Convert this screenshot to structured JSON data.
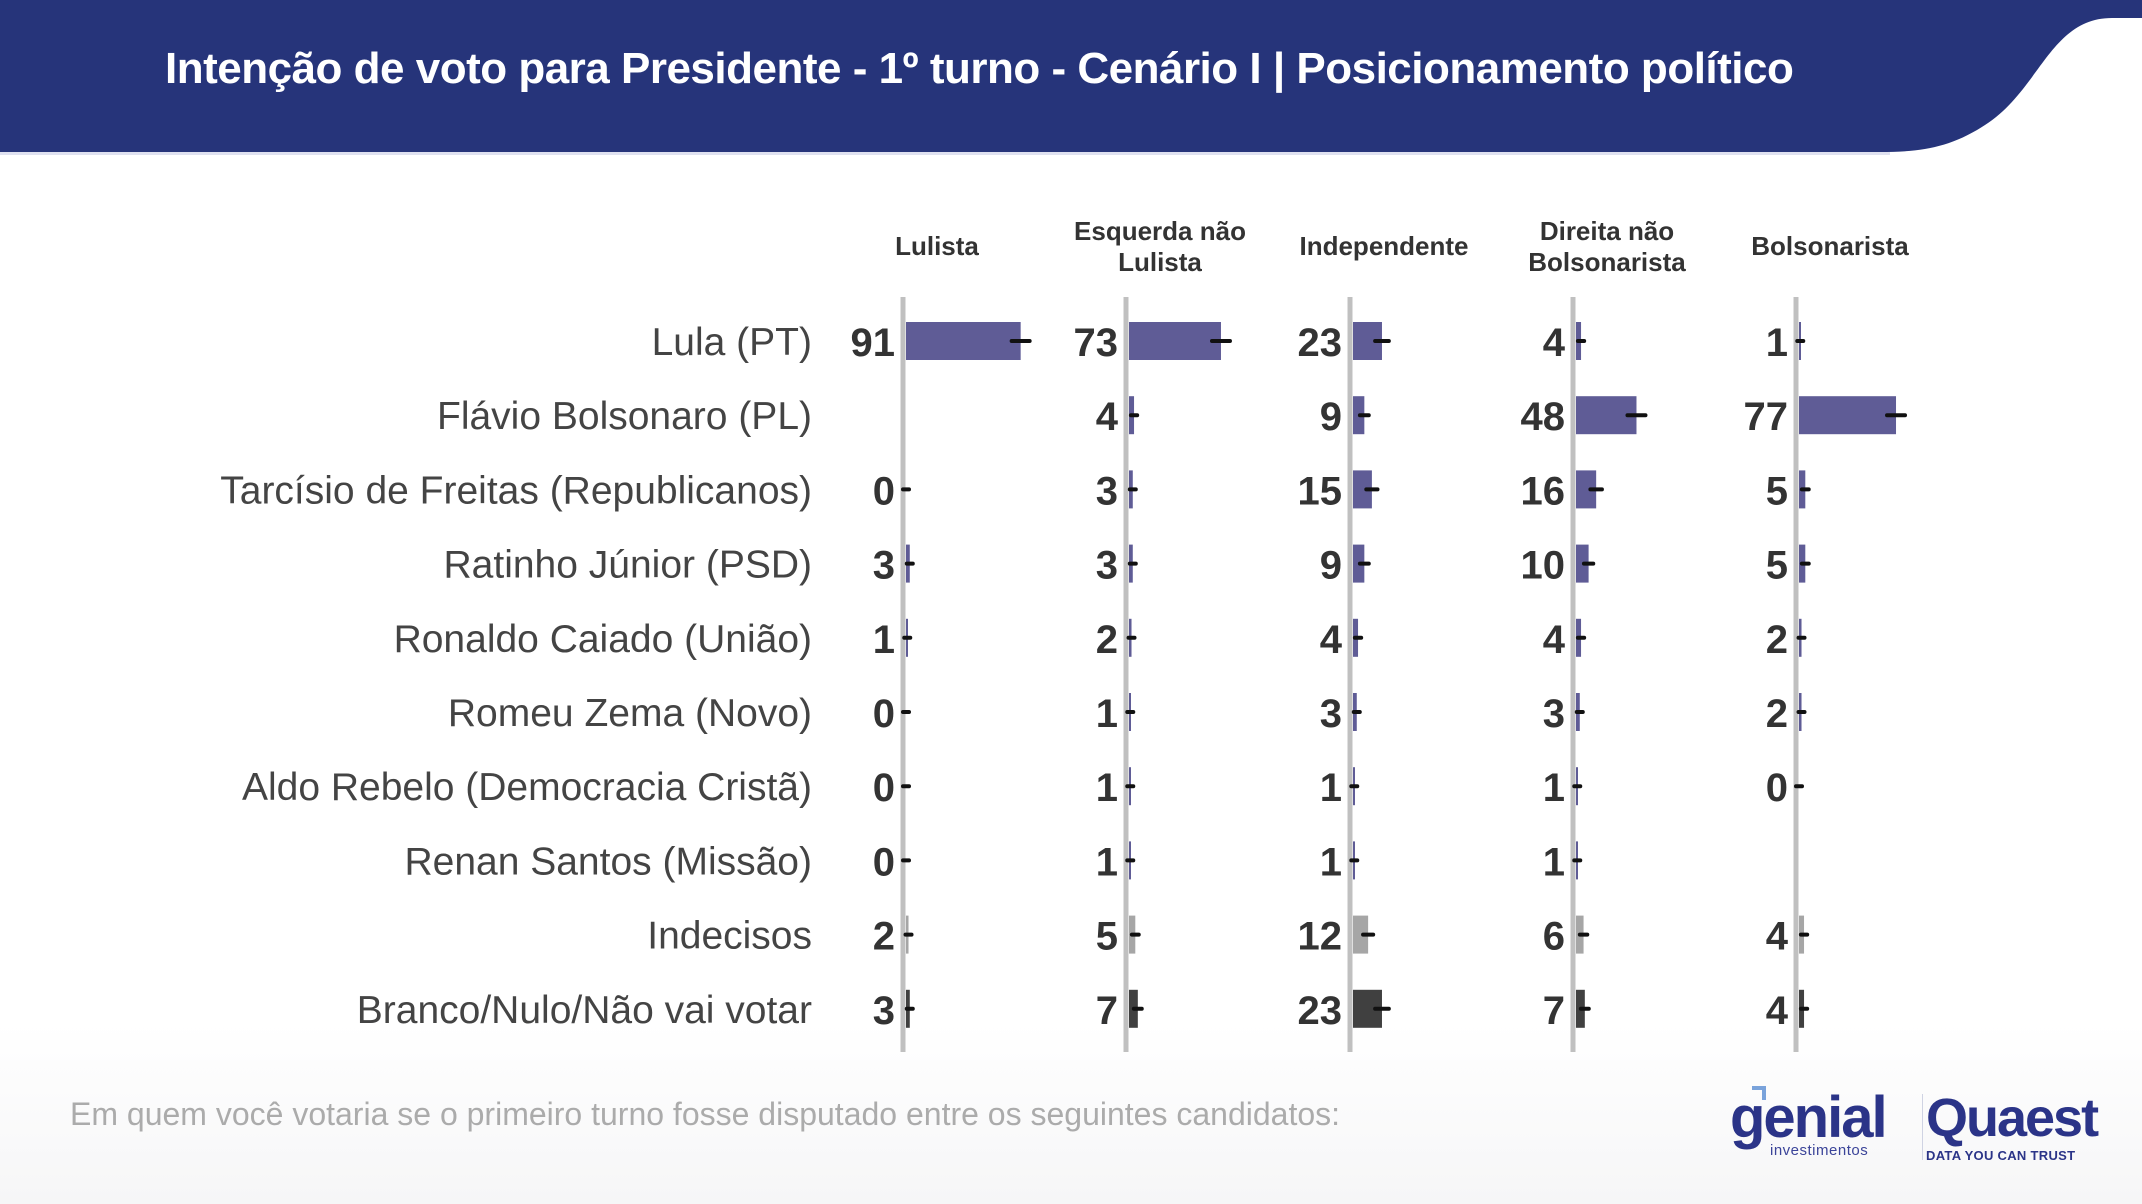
{
  "header": {
    "title": "Intenção de voto para Presidente - 1º turno - Cenário I | Posicionamento político",
    "background": "#26347a"
  },
  "footer": {
    "question": "Em quem você votaria se o primeiro turno fosse disputado entre os seguintes candidatos:",
    "logos": {
      "genial": "genial",
      "genial_sub": "investimentos",
      "quaest": "Quaest",
      "quaest_tagline": "DATA YOU CAN TRUST"
    }
  },
  "chart_data": {
    "type": "bar",
    "orientation": "horizontal",
    "title": "Intenção de voto para Presidente - 1º turno - Cenário I | Posicionamento político",
    "panels": [
      "Lulista",
      "Esquerda não Lulista",
      "Independente",
      "Direita não Bolsonarista",
      "Bolsonarista"
    ],
    "panel_labels": [
      [
        "Lulista"
      ],
      [
        "Esquerda não",
        "Lulista"
      ],
      [
        "Independente"
      ],
      [
        "Direita não",
        "Bolsonarista"
      ],
      [
        "Bolsonarista"
      ]
    ],
    "categories": [
      "Lula (PT)",
      "Flávio Bolsonaro (PL)",
      "Tarcísio de Freitas (Republicanos)",
      "Ratinho Júnior (PSD)",
      "Ronaldo Caiado (União)",
      "Romeu Zema (Novo)",
      "Aldo Rebelo (Democracia Cristã)",
      "Renan Santos (Missão)",
      "Indecisos",
      "Branco/Nulo/Não vai votar"
    ],
    "values": [
      [
        91,
        73,
        23,
        4,
        1
      ],
      [
        null,
        4,
        9,
        48,
        77
      ],
      [
        0,
        3,
        15,
        16,
        5
      ],
      [
        3,
        3,
        9,
        10,
        5
      ],
      [
        1,
        2,
        4,
        4,
        2
      ],
      [
        0,
        1,
        3,
        3,
        2
      ],
      [
        0,
        1,
        1,
        1,
        0
      ],
      [
        0,
        1,
        1,
        1,
        null
      ],
      [
        2,
        5,
        12,
        6,
        4
      ],
      [
        3,
        7,
        23,
        7,
        4
      ]
    ],
    "units": "%",
    "xlim": [
      0,
      100
    ],
    "error_bars": true,
    "colors": {
      "candidate": "#5f5c96",
      "Indecisos": "#a6a6a6",
      "Branco/Nulo/Não vai votar": "#404040",
      "axis": "#c0c0c0",
      "error_bar": "#111111"
    },
    "grid": false,
    "legend": "none"
  }
}
